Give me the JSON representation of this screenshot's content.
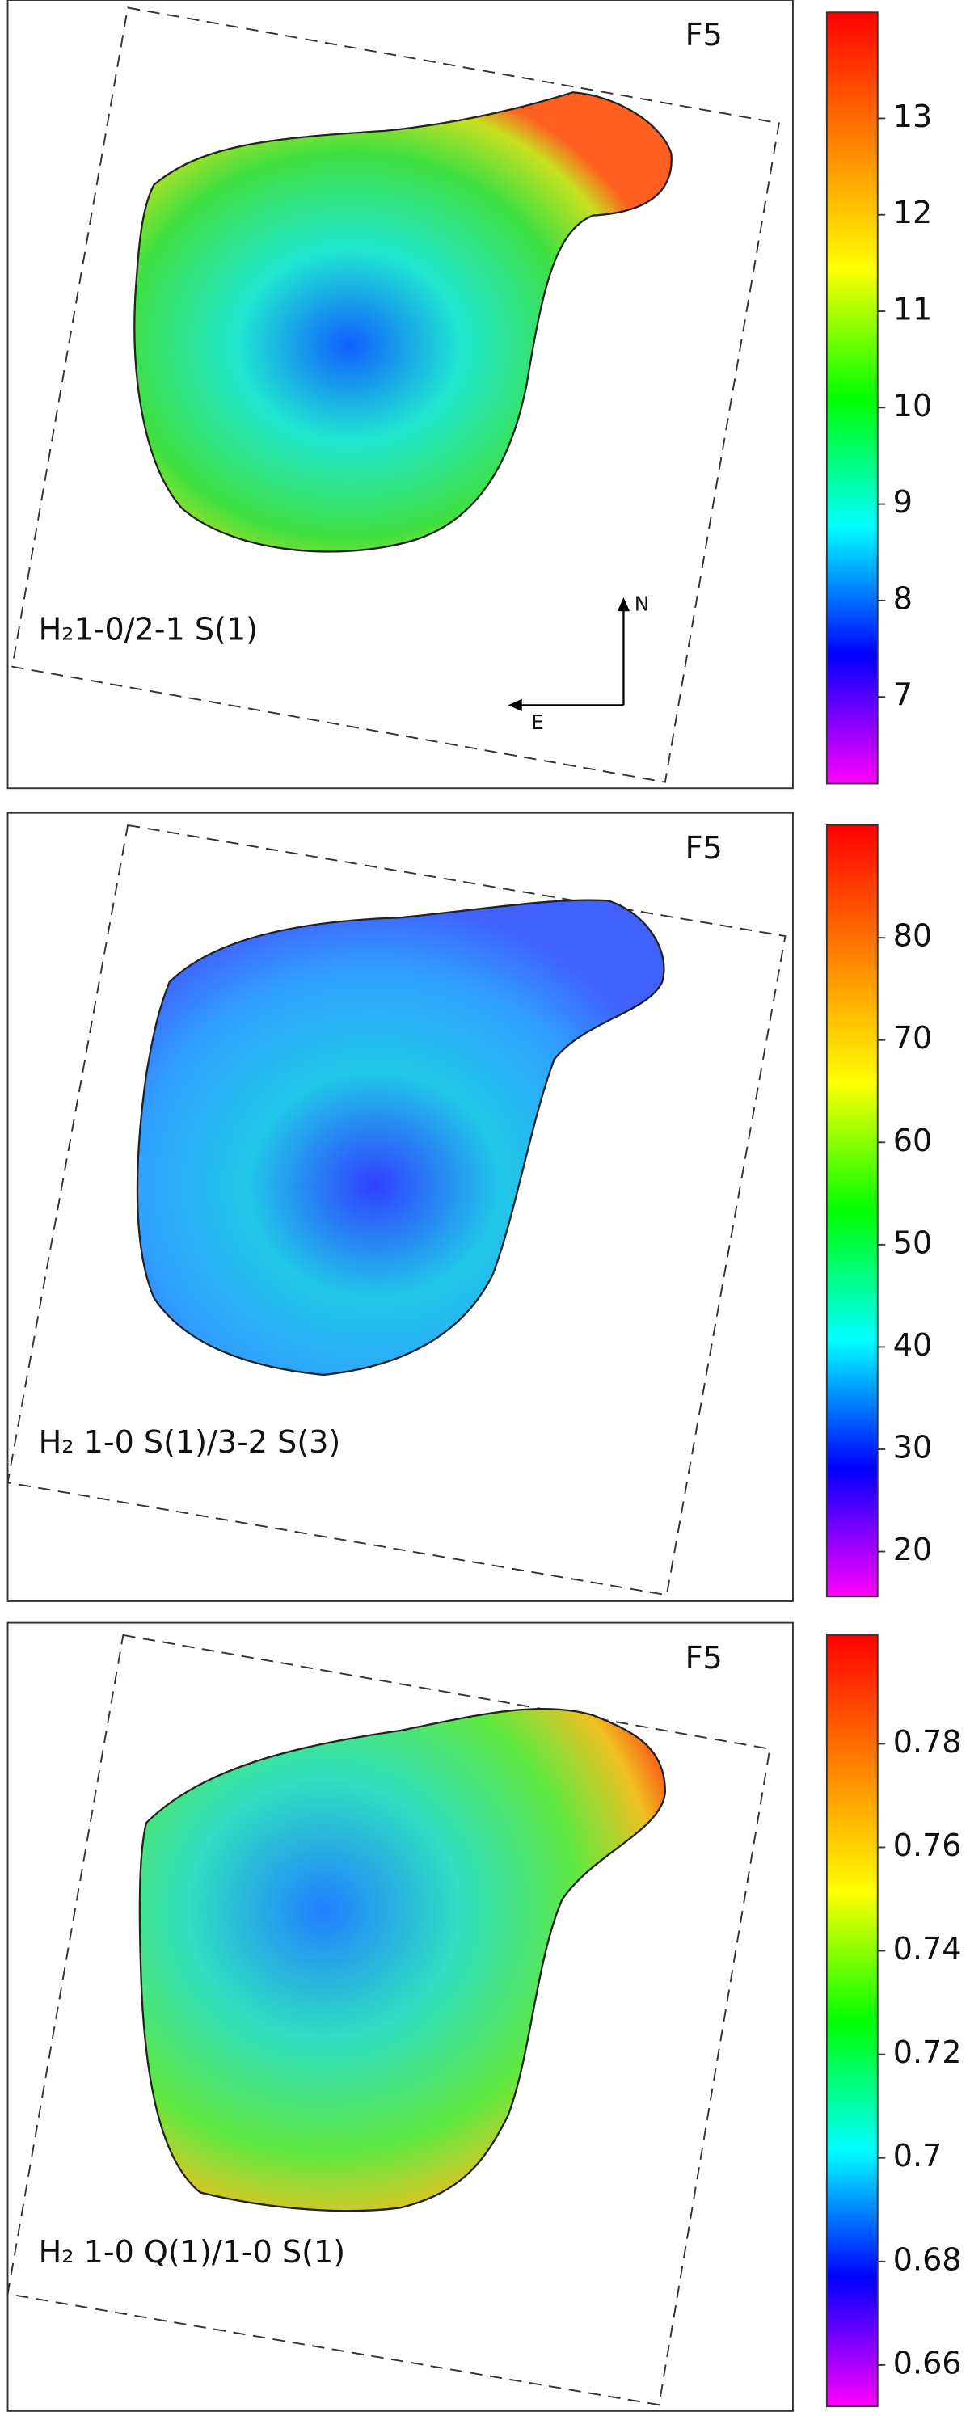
{
  "chart_data": [
    {
      "type": "heatmap",
      "field_label": "F5",
      "annotation": "H₂1-0/2-1 S(1)",
      "north_label": "N",
      "east_label": "E",
      "colorbar": {
        "ylim": [
          6.1,
          14.1
        ],
        "yticks": [
          7,
          8,
          9,
          10,
          11,
          12,
          13
        ],
        "colors": [
          "#ff00ff",
          "#0000ff",
          "#00ffff",
          "#00ff00",
          "#ffff00",
          "#ff8000",
          "#ff0000"
        ]
      }
    },
    {
      "type": "heatmap",
      "field_label": "F5",
      "annotation": "H₂ 1-0 S(1)/3-2 S(3)",
      "colorbar": {
        "ylim": [
          15.6,
          91
        ],
        "yticks": [
          20,
          30,
          40,
          50,
          60,
          70,
          80
        ],
        "colors": [
          "#ff00ff",
          "#0000ff",
          "#00ffff",
          "#00ff00",
          "#ffff00",
          "#ff8000",
          "#ff0000"
        ]
      }
    },
    {
      "type": "heatmap",
      "field_label": "F5",
      "annotation": "H₂ 1-0 Q(1)/1-0 S(1)",
      "colorbar": {
        "ylim": [
          0.652,
          0.801
        ],
        "yticks": [
          0.66,
          0.68,
          0.7,
          0.72,
          0.74,
          0.76,
          0.78
        ],
        "colors": [
          "#ff00ff",
          "#0000ff",
          "#00ffff",
          "#00ff00",
          "#ffff00",
          "#ff8000",
          "#ff0000"
        ]
      }
    }
  ]
}
